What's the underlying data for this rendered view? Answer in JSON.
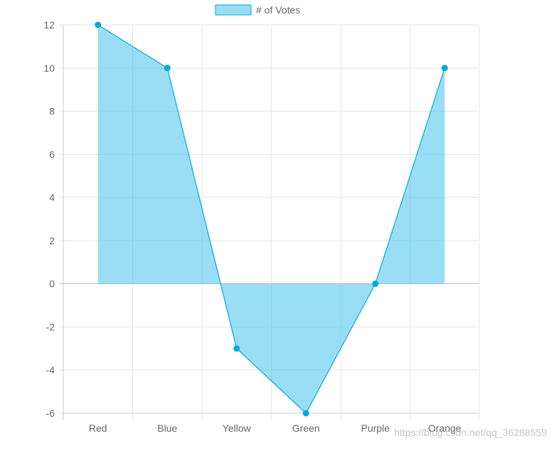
{
  "chart_data": {
    "type": "area",
    "categories": [
      "Red",
      "Blue",
      "Yellow",
      "Green",
      "Purple",
      "Orange"
    ],
    "series": [
      {
        "name": "# of Votes",
        "values": [
          12,
          10,
          -3,
          -6,
          0,
          10
        ]
      }
    ],
    "ylim": [
      -6,
      12
    ],
    "yticks": [
      12,
      10,
      8,
      6,
      4,
      2,
      0,
      -2,
      -4,
      -6
    ],
    "grid": true,
    "legend_position": "top-center",
    "colors": {
      "line": "#00a8e0",
      "fill": "rgba(54, 190, 238, 0.5)",
      "grid": "#e6e6e6",
      "axis": "#c8c8c8",
      "zero_line": "#bdbdbd",
      "tick_text": "#666666"
    }
  },
  "watermark": "https://blog.csdn.net/qq_36288559"
}
